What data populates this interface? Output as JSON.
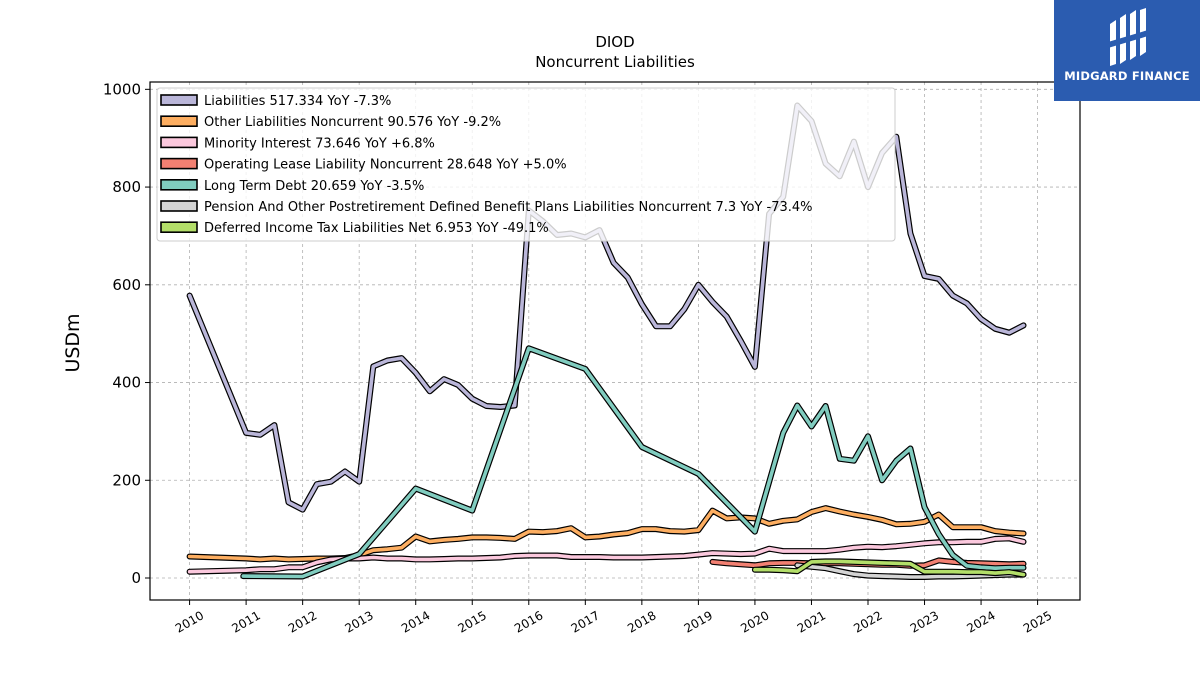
{
  "chart_data": {
    "type": "line",
    "title": "DIOD",
    "subtitle": "Noncurrent  Liabilities",
    "ylabel": "USDm",
    "xlabel": "",
    "xlim": [
      2009.3,
      2025.75
    ],
    "ylim": [
      -45,
      1015
    ],
    "yticks": [
      0,
      200,
      400,
      600,
      800,
      1000
    ],
    "xticks": [
      2010,
      2011,
      2012,
      2013,
      2014,
      2015,
      2016,
      2017,
      2018,
      2019,
      2020,
      2021,
      2022,
      2023,
      2024,
      2025
    ],
    "grid": true,
    "legend_position": "top-left",
    "series": [
      {
        "name": "Liabilities",
        "legend": "Liabilities  517.334 YoY -7.3%",
        "color": "#bab6d9",
        "points": [
          [
            2010.0,
            578
          ],
          [
            2011.0,
            297
          ],
          [
            2011.25,
            293
          ],
          [
            2011.5,
            313
          ],
          [
            2011.75,
            155
          ],
          [
            2012.0,
            140
          ],
          [
            2012.25,
            192
          ],
          [
            2012.5,
            197
          ],
          [
            2012.75,
            218
          ],
          [
            2013.0,
            197
          ],
          [
            2013.25,
            433
          ],
          [
            2013.5,
            445
          ],
          [
            2013.75,
            450
          ],
          [
            2014.0,
            420
          ],
          [
            2014.25,
            382
          ],
          [
            2014.5,
            407
          ],
          [
            2014.75,
            395
          ],
          [
            2015.0,
            367
          ],
          [
            2015.25,
            352
          ],
          [
            2015.5,
            350
          ],
          [
            2015.75,
            353
          ],
          [
            2016.0,
            752
          ],
          [
            2016.25,
            730
          ],
          [
            2016.5,
            702
          ],
          [
            2016.75,
            705
          ],
          [
            2017.0,
            697
          ],
          [
            2017.25,
            712
          ],
          [
            2017.5,
            645
          ],
          [
            2017.75,
            615
          ],
          [
            2018.0,
            560
          ],
          [
            2018.25,
            515
          ],
          [
            2018.5,
            515
          ],
          [
            2018.75,
            550
          ],
          [
            2019.0,
            600
          ],
          [
            2019.25,
            565
          ],
          [
            2019.5,
            535
          ],
          [
            2019.75,
            485
          ],
          [
            2020.0,
            432
          ],
          [
            2020.25,
            745
          ],
          [
            2020.5,
            780
          ],
          [
            2020.75,
            967
          ],
          [
            2021.0,
            935
          ],
          [
            2021.25,
            848
          ],
          [
            2021.5,
            822
          ],
          [
            2021.75,
            893
          ],
          [
            2022.0,
            800
          ],
          [
            2022.25,
            870
          ],
          [
            2022.5,
            903
          ],
          [
            2022.75,
            705
          ],
          [
            2023.0,
            618
          ],
          [
            2023.25,
            612
          ],
          [
            2023.5,
            578
          ],
          [
            2023.75,
            562
          ],
          [
            2024.0,
            530
          ],
          [
            2024.25,
            510
          ],
          [
            2024.5,
            502
          ],
          [
            2024.75,
            517
          ]
        ]
      },
      {
        "name": "Other Liabilities Noncurrent",
        "legend": "Other Liabilities Noncurrent  90.576 YoY -9.2%",
        "color": "#fdae61",
        "points": [
          [
            2010.0,
            44
          ],
          [
            2011.0,
            40
          ],
          [
            2011.25,
            38
          ],
          [
            2011.5,
            40
          ],
          [
            2011.75,
            38
          ],
          [
            2012.0,
            39
          ],
          [
            2012.25,
            40
          ],
          [
            2012.5,
            40
          ],
          [
            2012.75,
            41
          ],
          [
            2013.0,
            47
          ],
          [
            2013.25,
            57
          ],
          [
            2013.5,
            59
          ],
          [
            2013.75,
            62
          ],
          [
            2014.0,
            85
          ],
          [
            2014.25,
            75
          ],
          [
            2014.5,
            78
          ],
          [
            2014.75,
            80
          ],
          [
            2015.0,
            83
          ],
          [
            2015.25,
            83
          ],
          [
            2015.5,
            82
          ],
          [
            2015.75,
            80
          ],
          [
            2016.0,
            95
          ],
          [
            2016.25,
            94
          ],
          [
            2016.5,
            96
          ],
          [
            2016.75,
            102
          ],
          [
            2017.0,
            83
          ],
          [
            2017.25,
            85
          ],
          [
            2017.5,
            89
          ],
          [
            2017.75,
            92
          ],
          [
            2018.0,
            100
          ],
          [
            2018.25,
            100
          ],
          [
            2018.5,
            96
          ],
          [
            2018.75,
            95
          ],
          [
            2019.0,
            98
          ],
          [
            2019.25,
            138
          ],
          [
            2019.5,
            122
          ],
          [
            2019.75,
            124
          ],
          [
            2020.0,
            122
          ],
          [
            2020.25,
            111
          ],
          [
            2020.5,
            117
          ],
          [
            2020.75,
            120
          ],
          [
            2021.0,
            135
          ],
          [
            2021.25,
            143
          ],
          [
            2021.5,
            136
          ],
          [
            2021.75,
            130
          ],
          [
            2022.0,
            125
          ],
          [
            2022.25,
            119
          ],
          [
            2022.5,
            110
          ],
          [
            2022.75,
            111
          ],
          [
            2023.0,
            115
          ],
          [
            2023.25,
            130
          ],
          [
            2023.5,
            104
          ],
          [
            2023.75,
            104
          ],
          [
            2024.0,
            104
          ],
          [
            2024.25,
            96
          ],
          [
            2024.5,
            93
          ],
          [
            2024.75,
            91
          ]
        ]
      },
      {
        "name": "Minority Interest",
        "legend": "Minority Interest  73.646 YoY +6.8%",
        "color": "#fbc8dd",
        "points": [
          [
            2010.0,
            13
          ],
          [
            2011.0,
            16
          ],
          [
            2011.25,
            18
          ],
          [
            2011.5,
            18
          ],
          [
            2011.75,
            22
          ],
          [
            2012.0,
            22
          ],
          [
            2012.25,
            32
          ],
          [
            2012.5,
            38
          ],
          [
            2012.75,
            40
          ],
          [
            2013.0,
            40
          ],
          [
            2013.25,
            42
          ],
          [
            2013.5,
            40
          ],
          [
            2013.75,
            40
          ],
          [
            2014.0,
            38
          ],
          [
            2014.25,
            38
          ],
          [
            2014.5,
            39
          ],
          [
            2014.75,
            40
          ],
          [
            2015.0,
            40
          ],
          [
            2015.25,
            41
          ],
          [
            2015.5,
            42
          ],
          [
            2015.75,
            45
          ],
          [
            2016.0,
            46
          ],
          [
            2016.25,
            46
          ],
          [
            2016.5,
            46
          ],
          [
            2016.75,
            43
          ],
          [
            2017.0,
            43
          ],
          [
            2017.25,
            43
          ],
          [
            2017.5,
            42
          ],
          [
            2017.75,
            42
          ],
          [
            2018.0,
            42
          ],
          [
            2018.25,
            43
          ],
          [
            2018.5,
            44
          ],
          [
            2018.75,
            45
          ],
          [
            2019.0,
            48
          ],
          [
            2019.25,
            51
          ],
          [
            2019.5,
            50
          ],
          [
            2019.75,
            49
          ],
          [
            2020.0,
            50
          ],
          [
            2020.25,
            60
          ],
          [
            2020.5,
            55
          ],
          [
            2020.75,
            55
          ],
          [
            2021.0,
            55
          ],
          [
            2021.25,
            55
          ],
          [
            2021.5,
            58
          ],
          [
            2021.75,
            62
          ],
          [
            2022.0,
            64
          ],
          [
            2022.25,
            63
          ],
          [
            2022.5,
            65
          ],
          [
            2022.75,
            68
          ],
          [
            2023.0,
            71
          ],
          [
            2023.25,
            73
          ],
          [
            2023.5,
            73
          ],
          [
            2023.75,
            74
          ],
          [
            2024.0,
            74
          ],
          [
            2024.25,
            80
          ],
          [
            2024.5,
            81
          ],
          [
            2024.75,
            74
          ]
        ]
      },
      {
        "name": "Operating Lease Liability Noncurrent",
        "legend": "Operating Lease Liability Noncurrent  28.648 YoY +5.0%",
        "color": "#f28072",
        "points": [
          [
            2019.25,
            33
          ],
          [
            2019.5,
            30
          ],
          [
            2019.75,
            28
          ],
          [
            2020.0,
            26
          ],
          [
            2020.25,
            30
          ],
          [
            2020.5,
            31
          ],
          [
            2020.75,
            31
          ],
          [
            2021.0,
            30
          ],
          [
            2021.25,
            30
          ],
          [
            2021.5,
            30
          ],
          [
            2021.75,
            29
          ],
          [
            2022.0,
            28
          ],
          [
            2022.25,
            27
          ],
          [
            2022.5,
            27
          ],
          [
            2022.75,
            25
          ],
          [
            2023.0,
            26
          ],
          [
            2023.25,
            36
          ],
          [
            2023.5,
            33
          ],
          [
            2023.75,
            31
          ],
          [
            2024.0,
            30
          ],
          [
            2024.25,
            29
          ],
          [
            2024.5,
            28
          ],
          [
            2024.75,
            29
          ]
        ]
      },
      {
        "name": "Long Term Debt",
        "legend": "Long Term Debt  20.659 YoY -3.5%",
        "color": "#80ccbf",
        "points": [
          [
            2010.95,
            4
          ],
          [
            2012.0,
            3
          ],
          [
            2013.0,
            49
          ],
          [
            2014.0,
            183
          ],
          [
            2015.0,
            138
          ],
          [
            2016.0,
            470
          ],
          [
            2017.0,
            428
          ],
          [
            2018.0,
            268
          ],
          [
            2019.0,
            213
          ],
          [
            2020.0,
            95
          ],
          [
            2020.5,
            297
          ],
          [
            2020.75,
            353
          ],
          [
            2021.0,
            310
          ],
          [
            2021.25,
            352
          ],
          [
            2021.5,
            244
          ],
          [
            2021.75,
            240
          ],
          [
            2022.0,
            290
          ],
          [
            2022.25,
            200
          ],
          [
            2022.5,
            240
          ],
          [
            2022.75,
            265
          ],
          [
            2023.0,
            145
          ],
          [
            2023.25,
            90
          ],
          [
            2023.5,
            47
          ],
          [
            2023.75,
            25
          ],
          [
            2024.0,
            22
          ],
          [
            2024.25,
            20
          ],
          [
            2024.5,
            21
          ],
          [
            2024.75,
            21
          ]
        ]
      },
      {
        "name": "Pension And Other Postretirement Defined Benefit Plans Liabilities Noncurrent",
        "legend": "Pension And Other Postretirement Defined Benefit Plans Liabilities Noncurrent  7.3 YoY -73.4%",
        "color": "#d4d4d4",
        "points": [
          [
            2020.75,
            26
          ],
          [
            2021.0,
            23
          ],
          [
            2021.25,
            20
          ],
          [
            2021.5,
            14
          ],
          [
            2021.75,
            8
          ],
          [
            2022.0,
            5
          ],
          [
            2022.25,
            4
          ],
          [
            2022.5,
            3
          ],
          [
            2022.75,
            2
          ],
          [
            2023.0,
            2
          ],
          [
            2023.25,
            3
          ],
          [
            2023.5,
            3
          ],
          [
            2023.75,
            4
          ],
          [
            2024.0,
            5
          ],
          [
            2024.25,
            6
          ],
          [
            2024.5,
            7
          ],
          [
            2024.75,
            7
          ]
        ]
      },
      {
        "name": "Deferred Income Tax Liabilities Net",
        "legend": "Deferred Income Tax Liabilities Net  6.953 YoY -49.1%",
        "color": "#b3de69",
        "points": [
          [
            2020.0,
            17
          ],
          [
            2020.25,
            17
          ],
          [
            2020.5,
            16
          ],
          [
            2020.75,
            14
          ],
          [
            2021.0,
            33
          ],
          [
            2021.25,
            34
          ],
          [
            2021.5,
            34
          ],
          [
            2021.75,
            33
          ],
          [
            2022.0,
            32
          ],
          [
            2022.25,
            31
          ],
          [
            2022.5,
            30
          ],
          [
            2022.75,
            29
          ],
          [
            2023.0,
            13
          ],
          [
            2023.25,
            13
          ],
          [
            2023.5,
            13
          ],
          [
            2023.75,
            12
          ],
          [
            2024.0,
            12
          ],
          [
            2024.25,
            10
          ],
          [
            2024.5,
            12
          ],
          [
            2024.75,
            7
          ]
        ]
      }
    ]
  },
  "logo": {
    "text": "MIDGARD FINANCE"
  }
}
